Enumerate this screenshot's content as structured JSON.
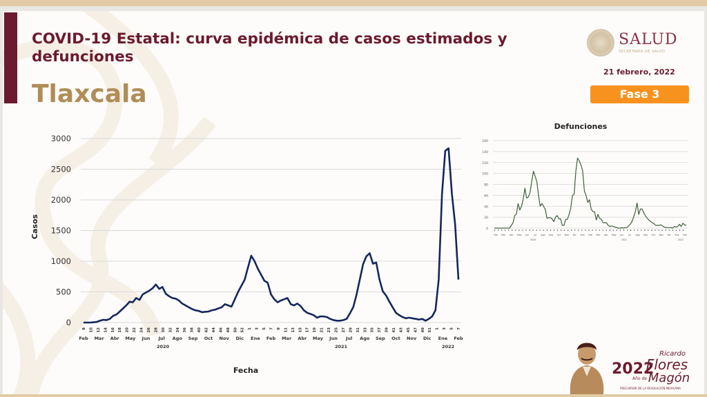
{
  "header": {
    "title": "COVID-19 Estatal: curva epidémica de casos estimados y defunciones",
    "state": "Tlaxcala",
    "logo_name": "SALUD",
    "logo_subtitle": "SECRETARÍA DE SALUD",
    "date": "21 febrero, 2022",
    "phase_badge": "Fase 3"
  },
  "colors": {
    "primary": "#6b1a2f",
    "gold": "#b08d57",
    "phase_orange": "#f7921e",
    "cases_line": "#14265c",
    "deaths_line": "#3f5f3a"
  },
  "footer": {
    "logo_year": "2022",
    "logo_year_prefix": "Año de",
    "logo_name_1": "Ricardo",
    "logo_name_2": "Flores",
    "logo_name_3": "Magón",
    "logo_caption": "PRECURSOR DE LA REVOLUCIÓN MEXICANA"
  },
  "chart_data": [
    {
      "type": "line",
      "title": "",
      "xlabel": "Fecha",
      "ylabel": "Casos",
      "ylim": [
        0,
        3000
      ],
      "yticks": [
        0,
        500,
        1000,
        1500,
        2000,
        2500,
        3000
      ],
      "grid": true,
      "legend": null,
      "week_tick_labels": [
        "8",
        "10",
        "12",
        "14",
        "16",
        "18",
        "20",
        "22",
        "24",
        "26",
        "28",
        "30",
        "32",
        "34",
        "36",
        "38",
        "40",
        "42",
        "44",
        "46",
        "48",
        "50",
        "52",
        "1",
        "3",
        "5",
        "7",
        "9",
        "11",
        "13",
        "15",
        "17",
        "19",
        "21",
        "23",
        "25",
        "27",
        "29",
        "31",
        "33",
        "35",
        "37",
        "39",
        "41",
        "43",
        "45",
        "47",
        "49",
        "51",
        "1",
        "3",
        "5",
        "7"
      ],
      "month_labels": [
        "Feb",
        "Mar",
        "Abr",
        "May",
        "Jun",
        "Jul",
        "Ago",
        "Sep",
        "Oct",
        "Nov",
        "Dic",
        "Ene",
        "Feb",
        "Mar",
        "Abr",
        "May",
        "Jun",
        "Jul",
        "Ago",
        "Sep",
        "Oct",
        "Nov",
        "Dic",
        "Ene",
        "Feb"
      ],
      "year_labels": [
        "2020",
        "2021",
        "2022"
      ],
      "series": [
        {
          "name": "Casos estimados",
          "values": [
            0,
            0,
            0,
            5,
            10,
            30,
            45,
            40,
            60,
            110,
            130,
            180,
            230,
            280,
            340,
            330,
            400,
            370,
            460,
            490,
            520,
            560,
            620,
            550,
            580,
            470,
            430,
            400,
            390,
            360,
            310,
            280,
            250,
            220,
            200,
            190,
            170,
            175,
            180,
            200,
            210,
            230,
            250,
            300,
            280,
            260,
            380,
            500,
            600,
            700,
            900,
            1090,
            1000,
            880,
            780,
            680,
            650,
            460,
            380,
            330,
            360,
            380,
            400,
            300,
            280,
            310,
            270,
            200,
            160,
            140,
            120,
            80,
            100,
            100,
            90,
            60,
            40,
            30,
            30,
            40,
            60,
            150,
            250,
            450,
            700,
            950,
            1080,
            1130,
            960,
            980,
            700,
            510,
            440,
            340,
            250,
            160,
            120,
            90,
            70,
            80,
            70,
            60,
            50,
            60,
            30,
            60,
            100,
            200,
            700,
            2100,
            2800,
            2840,
            2100,
            1600,
            700
          ],
          "note": "weekly estimated cases from week 8 (2020) to week 7 (2022), read from chart"
        }
      ]
    },
    {
      "type": "line",
      "title": "Defunciones",
      "xlabel": "",
      "ylabel": "",
      "ylim": [
        0,
        160
      ],
      "yticks": [
        0,
        20,
        40,
        60,
        80,
        100,
        120,
        140,
        160
      ],
      "grid": true,
      "month_labels": [
        "Feb",
        "Mar",
        "Abr",
        "May",
        "Jun",
        "Jul",
        "Ago",
        "Sep",
        "Oct",
        "Nov",
        "Dic",
        "Ene",
        "Feb",
        "Mar",
        "Abr",
        "May",
        "Jun",
        "Jul",
        "Ago",
        "Sep",
        "Oct",
        "Nov",
        "Dic",
        "Ene",
        "Feb"
      ],
      "year_labels": [
        "2020",
        "2021",
        "2022"
      ],
      "series": [
        {
          "name": "Defunciones",
          "values": [
            0,
            0,
            0,
            0,
            0,
            0,
            0,
            0,
            0,
            0,
            5,
            10,
            23,
            26,
            45,
            33,
            40,
            53,
            73,
            55,
            57,
            65,
            85,
            104,
            95,
            85,
            60,
            40,
            45,
            40,
            34,
            18,
            19,
            19,
            17,
            12,
            20,
            23,
            17,
            17,
            5,
            5,
            16,
            16,
            25,
            37,
            60,
            62,
            105,
            128,
            123,
            115,
            105,
            68,
            60,
            47,
            52,
            35,
            30,
            30,
            15,
            25,
            18,
            16,
            10,
            10,
            10,
            5,
            3,
            4,
            3,
            2,
            1,
            0,
            0,
            1,
            0,
            1,
            1,
            4,
            7,
            12,
            20,
            30,
            46,
            25,
            35,
            35,
            28,
            22,
            18,
            15,
            12,
            10,
            8,
            5,
            5,
            5,
            6,
            4,
            2,
            1,
            1,
            1,
            1,
            0,
            3,
            2,
            3,
            7,
            3,
            9,
            6,
            5
          ],
          "note": "weekly deaths, read approximately from small chart"
        }
      ]
    }
  ]
}
